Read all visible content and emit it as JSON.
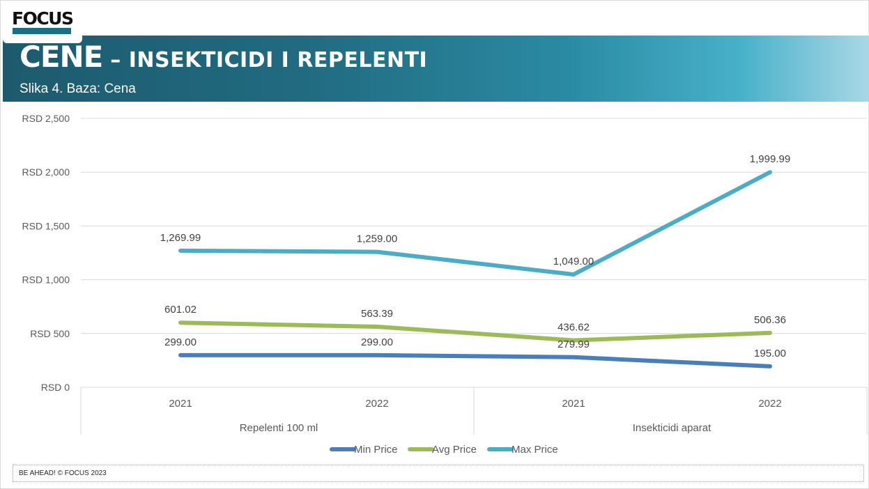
{
  "logo": {
    "text": "FOCUS"
  },
  "header": {
    "title_main": "CENE",
    "title_rest": " – INSEKTICIDI I REPELENTI",
    "subtitle": "Slika 4. Baza: Cena"
  },
  "footer": {
    "text": "BE AHEAD! © FOCUS 2023"
  },
  "chart_data": {
    "type": "line",
    "title": "",
    "xlabel": "",
    "ylabel": "",
    "ylim": [
      0,
      2500
    ],
    "yticks": [
      "RSD 0",
      "RSD 500",
      "RSD 1,000",
      "RSD 1,500",
      "RSD 2,000",
      "RSD 2,500"
    ],
    "ytick_values": [
      0,
      500,
      1000,
      1500,
      2000,
      2500
    ],
    "categories": [
      "2021",
      "2022",
      "2021",
      "2022"
    ],
    "groups": [
      {
        "label": "Repelenti 100 ml",
        "span": [
          0,
          1
        ]
      },
      {
        "label": "Insekticidi aparat",
        "span": [
          2,
          3
        ]
      }
    ],
    "grid": true,
    "legend": "bottom",
    "series": [
      {
        "name": "Min Price",
        "color": "#4a7ebb",
        "values": [
          299.0,
          299.0,
          279.99,
          195.0
        ],
        "labels": [
          "299.00",
          "299.00",
          "279.99",
          "195.00"
        ]
      },
      {
        "name": "Avg Price",
        "color": "#9bbb59",
        "values": [
          601.02,
          563.39,
          436.62,
          506.36
        ],
        "labels": [
          "601.02",
          "563.39",
          "436.62",
          "506.36"
        ]
      },
      {
        "name": "Max Price",
        "color": "#4bacc6",
        "values": [
          1269.99,
          1259.0,
          1049.0,
          1999.99
        ],
        "labels": [
          "1,269.99",
          "1,259.00",
          "1,049.00",
          "1,999.99"
        ]
      }
    ]
  }
}
